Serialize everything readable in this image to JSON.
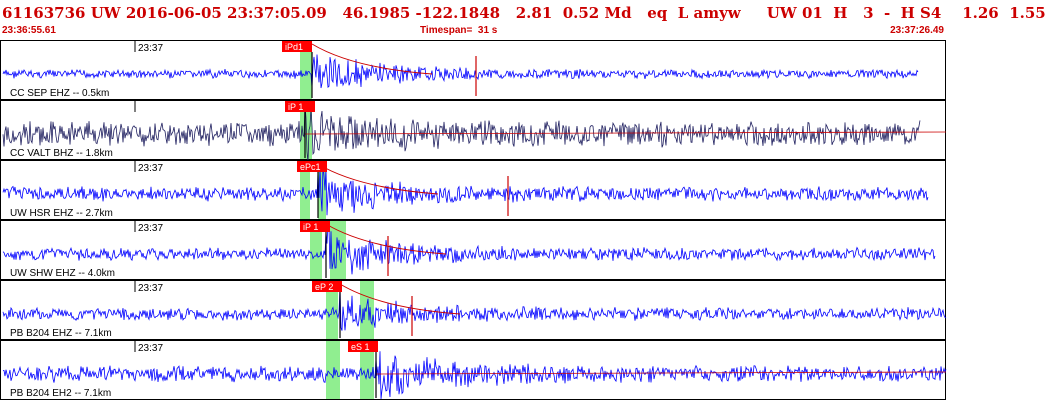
{
  "header": {
    "event_line": "61163736 UW 2016-06-05 23:37:05.09   46.1985 -122.1848   2.81  0.52 Md   eq  L amyw     UW 01  H   3  -  H S4    1.26  1.55",
    "time_start": "23:36:55.61",
    "timespan": "Timespan=  31 s",
    "time_end": "23:37:26.49"
  },
  "colors": {
    "header_text": "#cc0000",
    "trace": "#0000ff",
    "trace_dark": "#202060",
    "pick_box": "#ff0000",
    "pick_text": "#ffffff",
    "window_shade": "#90ee90",
    "coda_line": "#cc0000",
    "border": "#000000"
  },
  "traces": [
    {
      "label": "CC SEP EHZ -- 0.5km",
      "time_tick": "23:37",
      "pick": "iPd1",
      "dark": false
    },
    {
      "label": "CC VALT BHZ -- 1.8km",
      "time_tick": "",
      "pick": "iP 1",
      "dark": true
    },
    {
      "label": "UW HSR EHZ -- 2.7km",
      "time_tick": "23:37",
      "pick": "ePc1",
      "dark": false
    },
    {
      "label": "UW SHW EHZ -- 4.0km",
      "time_tick": "23:37",
      "pick": "iP 1",
      "dark": false
    },
    {
      "label": "PB B204 EHZ -- 7.1km",
      "time_tick": "23:37",
      "pick": "eP 2",
      "dark": false
    },
    {
      "label": "PB B204 EH2 -- 7.1km",
      "time_tick": "23:37",
      "pick": "eS 1",
      "dark": false
    }
  ]
}
